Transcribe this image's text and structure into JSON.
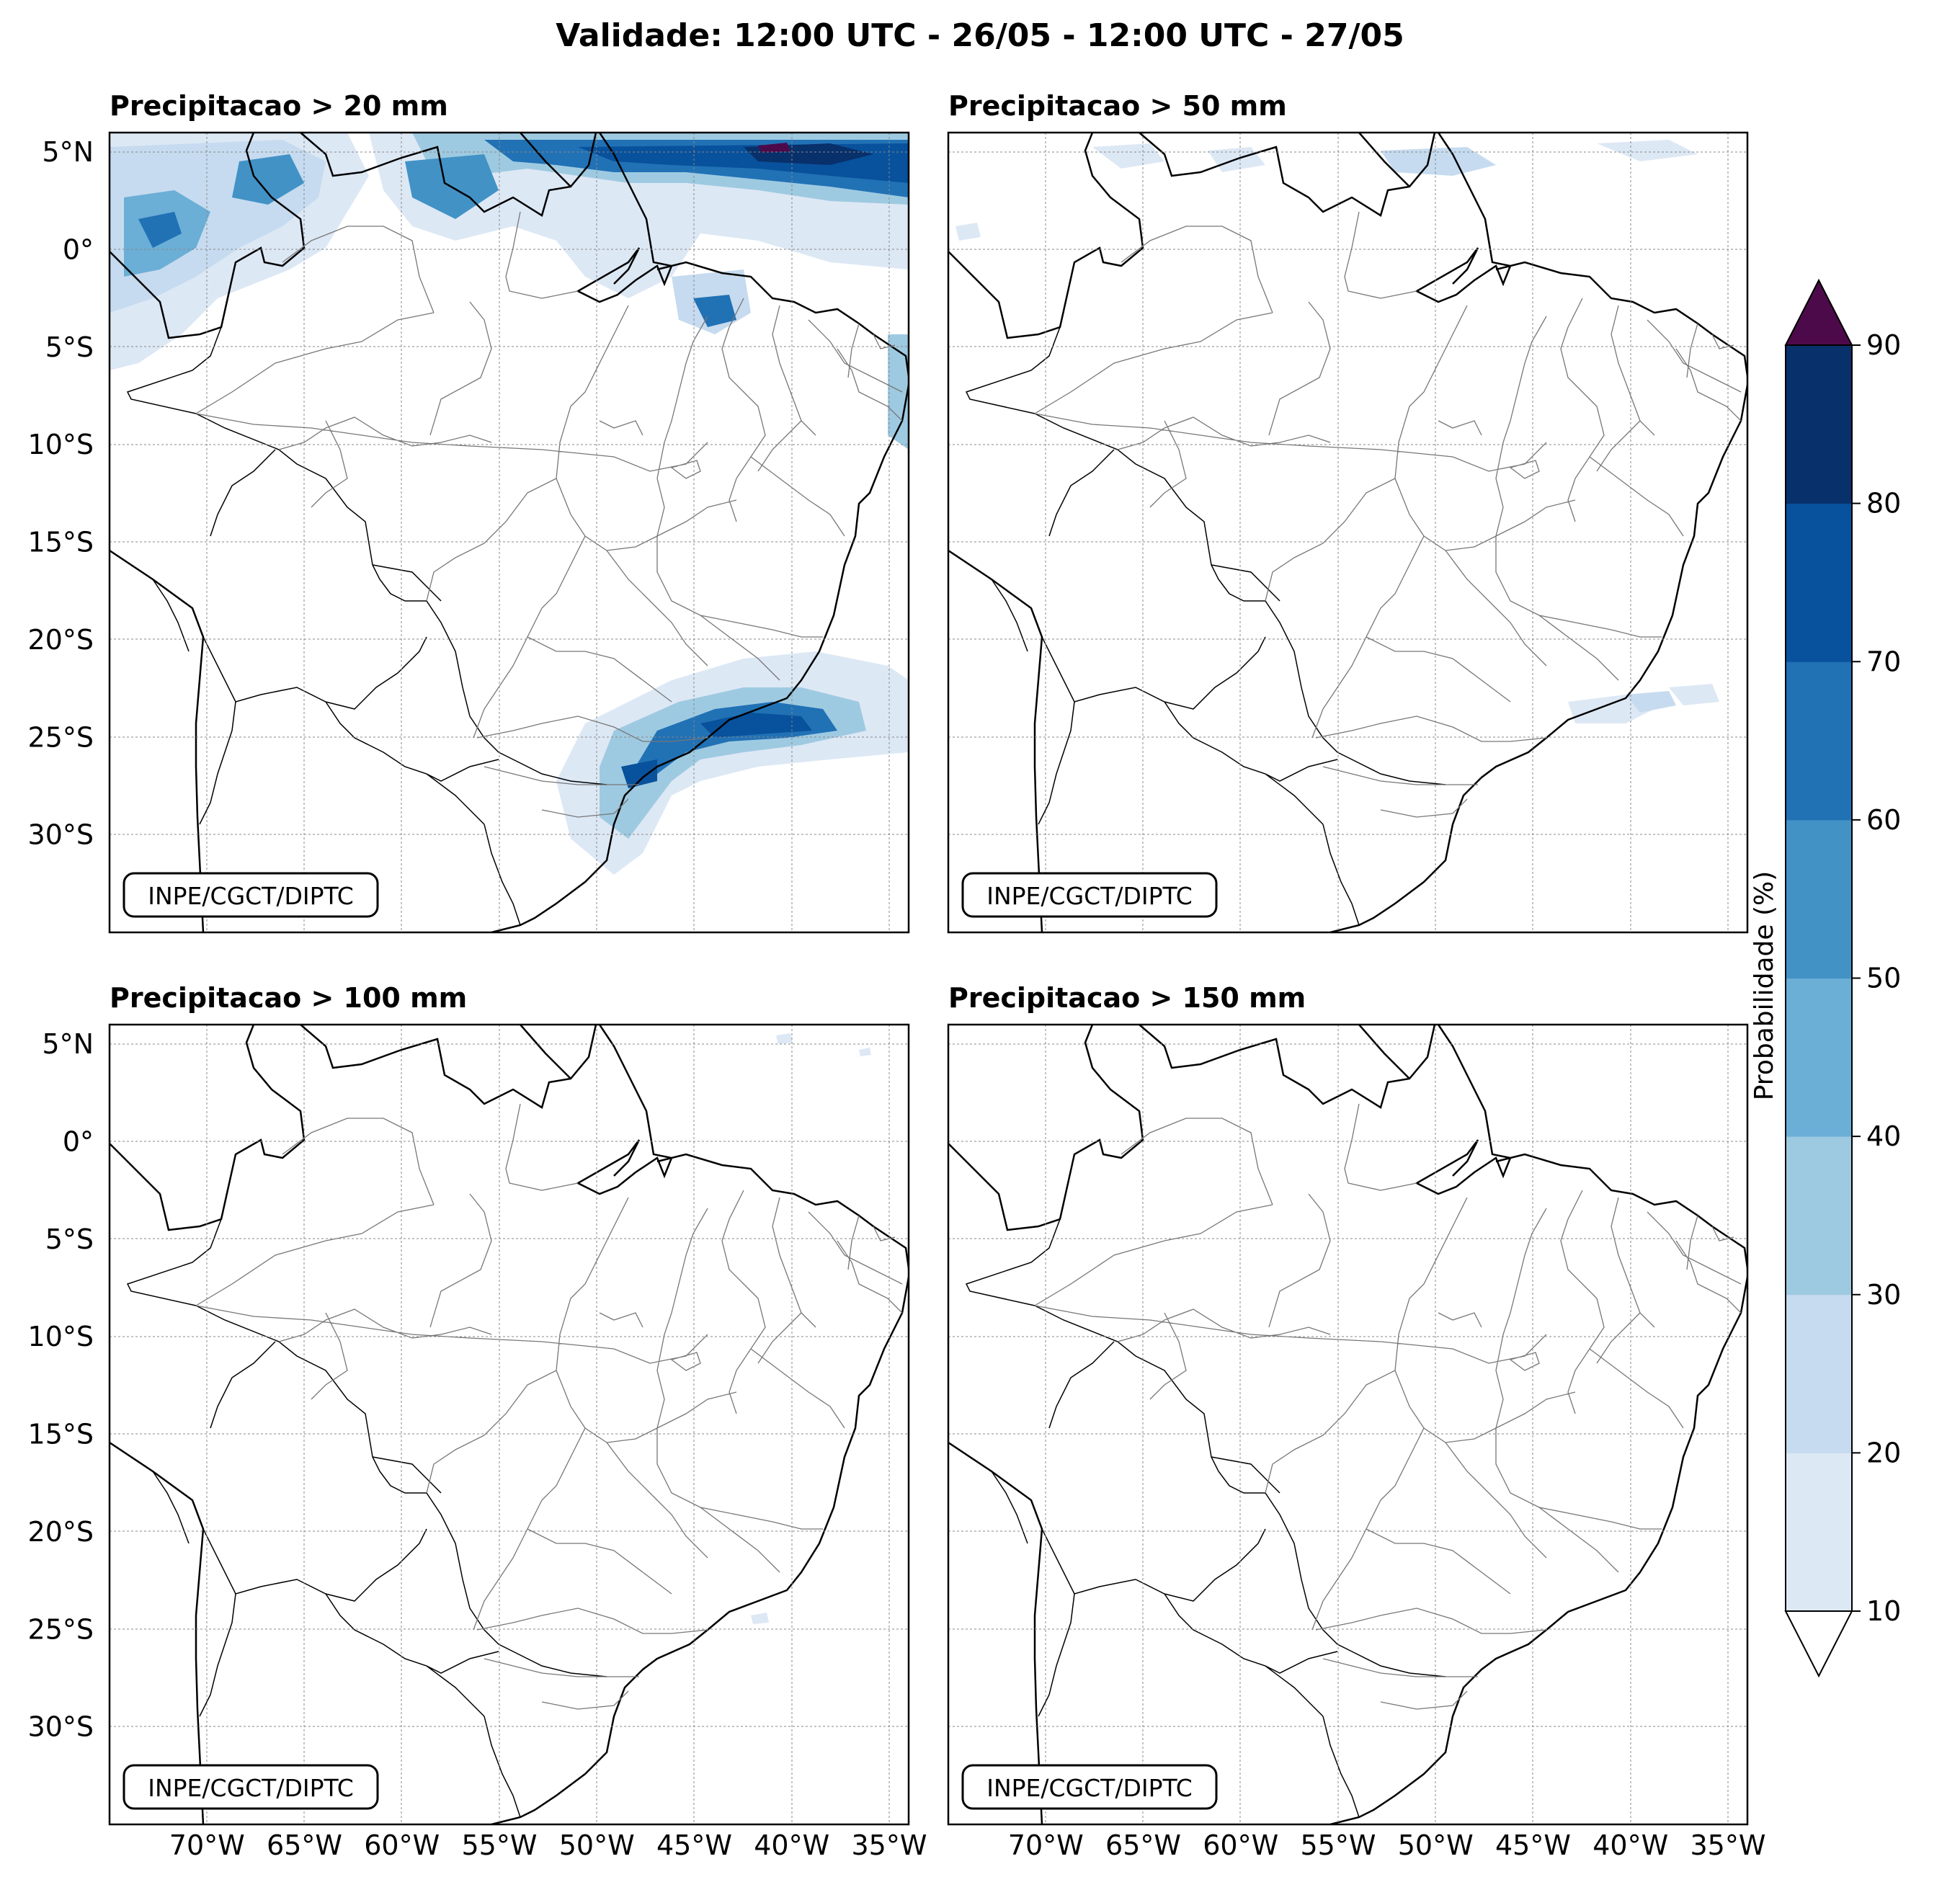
{
  "title": "Validade: 12:00 UTC - 26/05 - 12:00 UTC - 27/05",
  "credit": "INPE/CGCT/DIPTC",
  "panels": [
    {
      "id": "p20",
      "title": "Precipitacao > 20 mm"
    },
    {
      "id": "p50",
      "title": "Precipitacao > 50 mm"
    },
    {
      "id": "p100",
      "title": "Precipitacao > 100 mm"
    },
    {
      "id": "p150",
      "title": "Precipitacao > 150 mm"
    }
  ],
  "map": {
    "lon_range": [
      -75,
      -34
    ],
    "lat_range": [
      -35,
      6
    ],
    "lat_ticks": [
      {
        "value": 5,
        "label": "5°N"
      },
      {
        "value": 0,
        "label": "0°"
      },
      {
        "value": -5,
        "label": "5°S"
      },
      {
        "value": -10,
        "label": "10°S"
      },
      {
        "value": -15,
        "label": "15°S"
      },
      {
        "value": -20,
        "label": "20°S"
      },
      {
        "value": -25,
        "label": "25°S"
      },
      {
        "value": -30,
        "label": "30°S"
      }
    ],
    "lon_ticks": [
      {
        "value": -70,
        "label": "70°W"
      },
      {
        "value": -65,
        "label": "65°W"
      },
      {
        "value": -60,
        "label": "60°W"
      },
      {
        "value": -55,
        "label": "55°W"
      },
      {
        "value": -50,
        "label": "50°W"
      },
      {
        "value": -45,
        "label": "45°W"
      },
      {
        "value": -40,
        "label": "40°W"
      },
      {
        "value": -35,
        "label": "35°W"
      }
    ],
    "gridlines": true
  },
  "colorbar": {
    "label": "Probabilidade (%)",
    "ticks": [
      "10",
      "20",
      "30",
      "40",
      "50",
      "60",
      "70",
      "80",
      "90"
    ],
    "colors": [
      "#dde8f5",
      "#c6dbef",
      "#9ecae1",
      "#6baed6",
      "#4292c6",
      "#2171b5",
      "#08519c",
      "#08306b"
    ],
    "over_color": "#4d0a4a",
    "under_color": "#ffffff"
  },
  "chart_data": [
    {
      "type": "heatmap",
      "title": "Precipitacao > 20 mm",
      "regions": [
        {
          "area": "north coast, Amapa and Atlantic east of 45°W",
          "probability_percent": [
            40,
            90
          ]
        },
        {
          "area": "northwest Amazonas / Roraima",
          "probability_percent": [
            20,
            70
          ]
        },
        {
          "area": "coast of Maranhao near 42°W 4°S",
          "probability_percent": [
            40,
            80
          ]
        },
        {
          "area": "southeast coast and Atlantic near 24°S 40-45°W",
          "probability_percent": [
            40,
            90
          ]
        },
        {
          "area": "Santa Catarina coast near 26°S 48°W",
          "probability_percent": [
            30,
            70
          ]
        }
      ]
    },
    {
      "type": "heatmap",
      "title": "Precipitacao > 50 mm",
      "regions": [
        {
          "area": "scattered patches near 5°N",
          "probability_percent": [
            10,
            30
          ]
        },
        {
          "area": "Atlantic near 24°S 35-42°W",
          "probability_percent": [
            10,
            30
          ]
        }
      ]
    },
    {
      "type": "heatmap",
      "title": "Precipitacao > 100 mm",
      "regions": [
        {
          "area": "isolated points near 5°N and 25°S",
          "probability_percent": [
            10,
            20
          ]
        }
      ]
    },
    {
      "type": "heatmap",
      "title": "Precipitacao > 150 mm",
      "regions": []
    }
  ]
}
